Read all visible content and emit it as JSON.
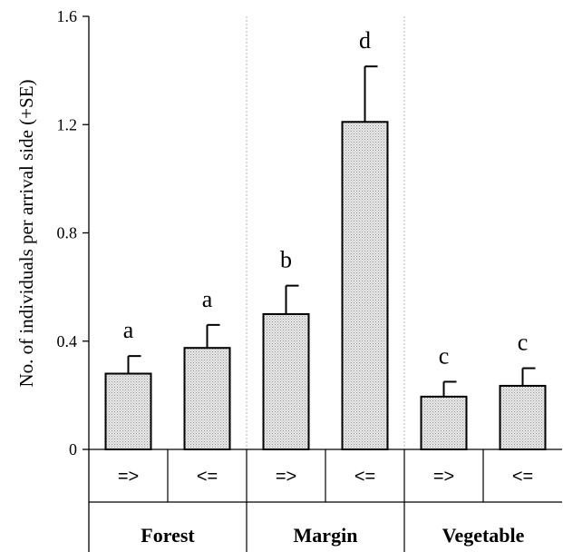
{
  "chart_data": {
    "type": "bar",
    "title": "",
    "ylabel": "No. of  individuals per arrival side (+SE)",
    "xlabel": "",
    "ylim": [
      0,
      1.6
    ],
    "yticks": [
      {
        "value": 0,
        "label": "0"
      },
      {
        "value": 0.4,
        "label": "0.4"
      },
      {
        "value": 0.8,
        "label": "0.8"
      },
      {
        "value": 1.2,
        "label": "1.2"
      },
      {
        "value": 1.6,
        "label": "1.6"
      }
    ],
    "groups": [
      "Forest",
      "Margin",
      "Vegetable"
    ],
    "bars": [
      {
        "group": 0,
        "category": "=>",
        "value": 0.28,
        "se": 0.065,
        "letter": "a"
      },
      {
        "group": 0,
        "category": "<=",
        "value": 0.375,
        "se": 0.085,
        "letter": "a"
      },
      {
        "group": 1,
        "category": "=>",
        "value": 0.5,
        "se": 0.105,
        "letter": "b"
      },
      {
        "group": 1,
        "category": "<=",
        "value": 1.21,
        "se": 0.205,
        "letter": "d"
      },
      {
        "group": 2,
        "category": "=>",
        "value": 0.195,
        "se": 0.055,
        "letter": "c"
      },
      {
        "group": 2,
        "category": "<=",
        "value": 0.235,
        "se": 0.065,
        "letter": "c"
      }
    ],
    "bar_fill": "#d9d9d9",
    "grid": false,
    "legend": "none"
  }
}
